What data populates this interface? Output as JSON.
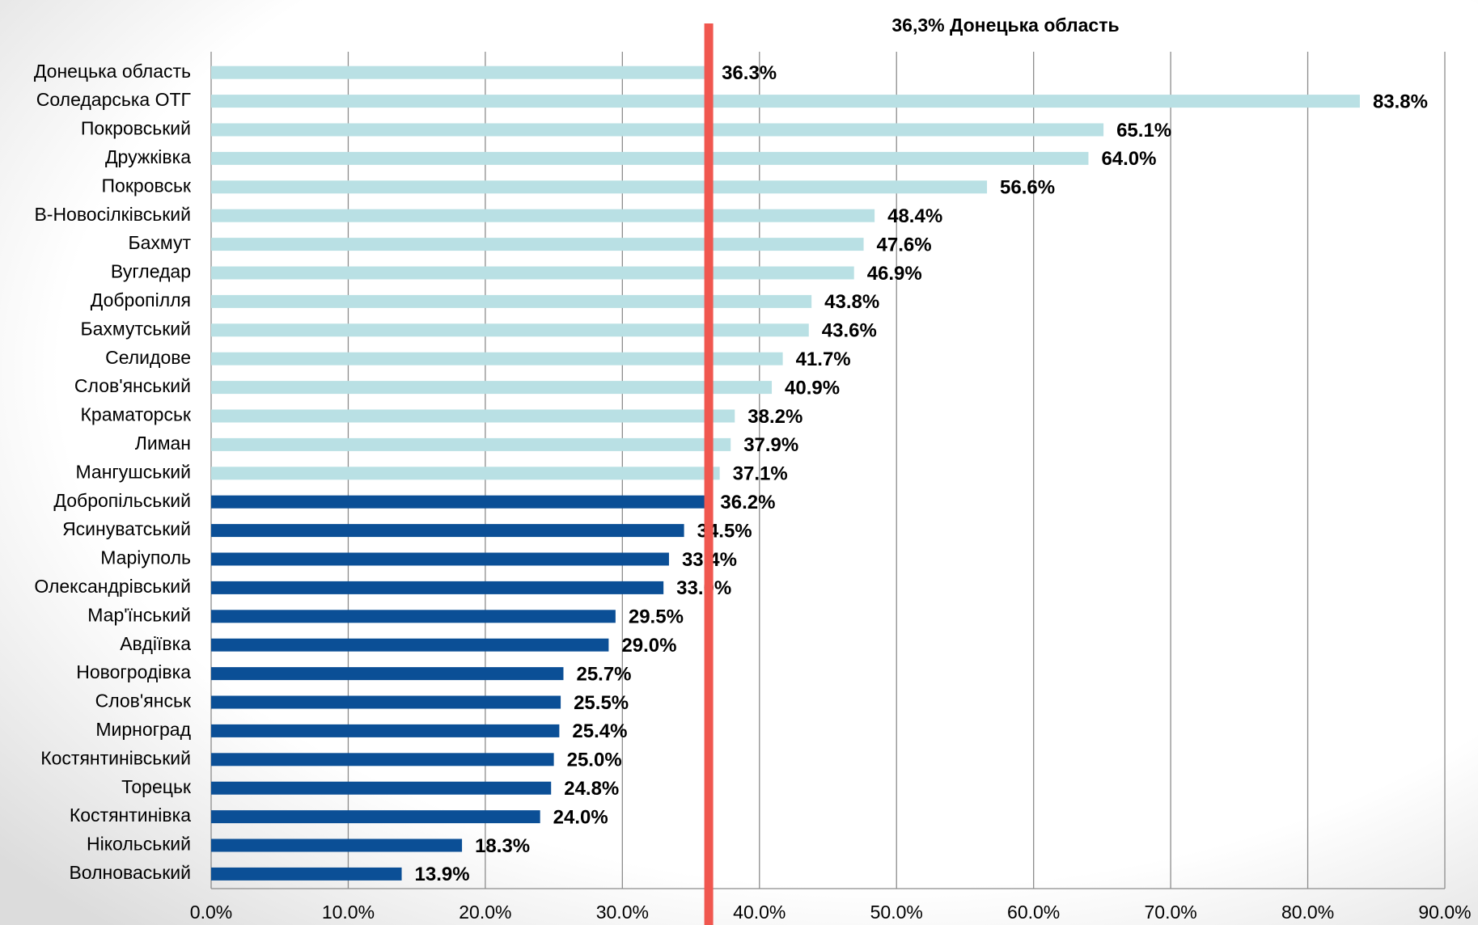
{
  "chart_data": {
    "type": "barh",
    "annotation": "36,3% Донецька область",
    "reference_line": {
      "value": 36.3,
      "color": "#f0574f"
    },
    "categories": [
      "Донецька область",
      "Соледарська ОТГ",
      "Покровський",
      "Дружківка",
      "Покровськ",
      "В-Новосілківський",
      "Бахмут",
      "Вугледар",
      "Добропілля",
      "Бахмутський",
      "Селидове",
      "Слов'янський",
      "Краматорськ",
      "Лиман",
      "Мангушський",
      "Добропільський",
      "Ясинуватський",
      "Маріуполь",
      "Олександрівський",
      "Мар'їнський",
      "Авдіївка",
      "Новогродівка",
      "Слов'янськ",
      "Мирноград",
      "Костянтинівський",
      "Торецьк",
      "Костянтинівка",
      "Нікольський",
      "Волноваський"
    ],
    "values": [
      36.3,
      83.8,
      65.1,
      64.0,
      56.6,
      48.4,
      47.6,
      46.9,
      43.8,
      43.6,
      41.7,
      40.9,
      38.2,
      37.9,
      37.1,
      36.2,
      34.5,
      33.4,
      33.0,
      29.5,
      29.0,
      25.7,
      25.5,
      25.4,
      25.0,
      24.8,
      24.0,
      18.3,
      13.9
    ],
    "value_labels": [
      "36.3%",
      "83.8%",
      "65.1%",
      "64.0%",
      "56.6%",
      "48.4%",
      "47.6%",
      "46.9%",
      "43.8%",
      "43.6%",
      "41.7%",
      "40.9%",
      "38.2%",
      "37.9%",
      "37.1%",
      "36.2%",
      "34.5%",
      "33.4%",
      "33.0%",
      "29.5%",
      "29.0%",
      "25.7%",
      "25.5%",
      "25.4%",
      "25.0%",
      "24.8%",
      "24.0%",
      "18.3%",
      "13.9%"
    ],
    "colors": [
      "#b9e0e4",
      "#b9e0e4",
      "#b9e0e4",
      "#b9e0e4",
      "#b9e0e4",
      "#b9e0e4",
      "#b9e0e4",
      "#b9e0e4",
      "#b9e0e4",
      "#b9e0e4",
      "#b9e0e4",
      "#b9e0e4",
      "#b9e0e4",
      "#b9e0e4",
      "#b9e0e4",
      "#0b4f96",
      "#0b4f96",
      "#0b4f96",
      "#0b4f96",
      "#0b4f96",
      "#0b4f96",
      "#0b4f96",
      "#0b4f96",
      "#0b4f96",
      "#0b4f96",
      "#0b4f96",
      "#0b4f96",
      "#0b4f96",
      "#0b4f96"
    ],
    "xlim": [
      0,
      90
    ],
    "xticks": [
      {
        "value": 0,
        "label": "0.0%"
      },
      {
        "value": 10,
        "label": "10.0%"
      },
      {
        "value": 20,
        "label": "20.0%"
      },
      {
        "value": 30,
        "label": "30.0%"
      },
      {
        "value": 40,
        "label": "40.0%"
      },
      {
        "value": 50,
        "label": "50.0%"
      },
      {
        "value": 60,
        "label": "60.0%"
      },
      {
        "value": 70,
        "label": "70.0%"
      },
      {
        "value": 80,
        "label": "80.0%"
      },
      {
        "value": 90,
        "label": "90.0%"
      }
    ],
    "grid": true
  }
}
